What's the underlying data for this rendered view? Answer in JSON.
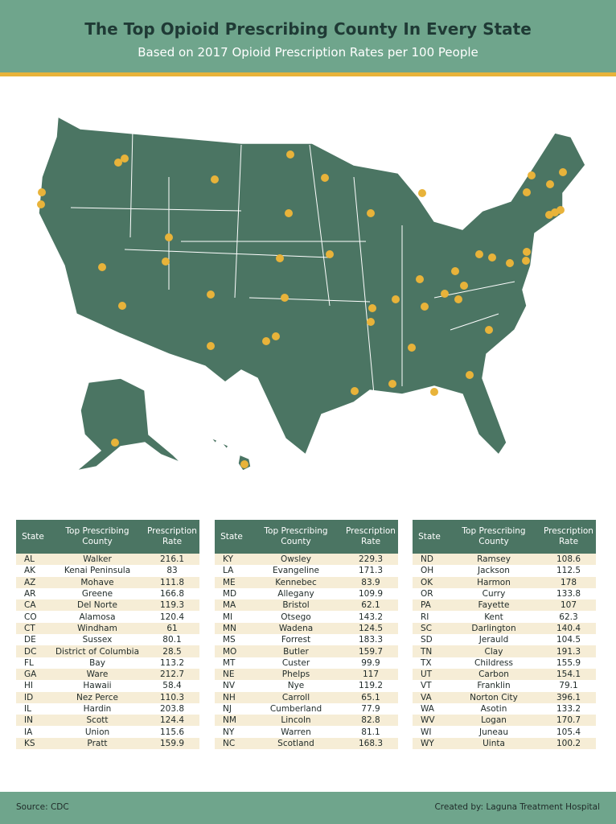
{
  "header": {
    "title": "The Top Opioid Prescribing County In Every State",
    "subtitle": "Based on 2017 Opioid Prescription Rates per 100 People"
  },
  "tables": [
    {
      "columns": [
        "State",
        "Top Prescribing County",
        "Prescription Rate"
      ],
      "rows": [
        [
          "AL",
          "Walker",
          "216.1"
        ],
        [
          "AK",
          "Kenai Peninsula",
          "83"
        ],
        [
          "AZ",
          "Mohave",
          "111.8"
        ],
        [
          "AR",
          "Greene",
          "166.8"
        ],
        [
          "CA",
          "Del Norte",
          "119.3"
        ],
        [
          "CO",
          "Alamosa",
          "120.4"
        ],
        [
          "CT",
          "Windham",
          "61"
        ],
        [
          "DE",
          "Sussex",
          "80.1"
        ],
        [
          "DC",
          "District of Columbia",
          "28.5"
        ],
        [
          "FL",
          "Bay",
          "113.2"
        ],
        [
          "GA",
          "Ware",
          "212.7"
        ],
        [
          "HI",
          "Hawaii",
          "58.4"
        ],
        [
          "ID",
          "Nez Perce",
          "110.3"
        ],
        [
          "IL",
          "Hardin",
          "203.8"
        ],
        [
          "IN",
          "Scott",
          "124.4"
        ],
        [
          "IA",
          "Union",
          "115.6"
        ],
        [
          "KS",
          "Pratt",
          "159.9"
        ]
      ]
    },
    {
      "columns": [
        "State",
        "Top Prescribing County",
        "Prescription Rate"
      ],
      "rows": [
        [
          "KY",
          "Owsley",
          "229.3"
        ],
        [
          "LA",
          "Evangeline",
          "171.3"
        ],
        [
          "ME",
          "Kennebec",
          "83.9"
        ],
        [
          "MD",
          "Allegany",
          "109.9"
        ],
        [
          "MA",
          "Bristol",
          "62.1"
        ],
        [
          "MI",
          "Otsego",
          "143.2"
        ],
        [
          "MN",
          "Wadena",
          "124.5"
        ],
        [
          "MS",
          "Forrest",
          "183.3"
        ],
        [
          "MO",
          "Butler",
          "159.7"
        ],
        [
          "MT",
          "Custer",
          "99.9"
        ],
        [
          "NE",
          "Phelps",
          "117"
        ],
        [
          "NV",
          "Nye",
          "119.2"
        ],
        [
          "NH",
          "Carroll",
          "65.1"
        ],
        [
          "NJ",
          "Cumberland",
          "77.9"
        ],
        [
          "NM",
          "Lincoln",
          "82.8"
        ],
        [
          "NY",
          "Warren",
          "81.1"
        ],
        [
          "NC",
          "Scotland",
          "168.3"
        ]
      ]
    },
    {
      "columns": [
        "State",
        "Top Prescribing County",
        "Prescription Rate"
      ],
      "rows": [
        [
          "ND",
          "Ramsey",
          "108.6"
        ],
        [
          "OH",
          "Jackson",
          "112.5"
        ],
        [
          "OK",
          "Harmon",
          "178"
        ],
        [
          "OR",
          "Curry",
          "133.8"
        ],
        [
          "PA",
          "Fayette",
          "107"
        ],
        [
          "RI",
          "Kent",
          "62.3"
        ],
        [
          "SC",
          "Darlington",
          "140.4"
        ],
        [
          "SD",
          "Jerauld",
          "104.5"
        ],
        [
          "TN",
          "Clay",
          "191.3"
        ],
        [
          "TX",
          "Childress",
          "155.9"
        ],
        [
          "UT",
          "Carbon",
          "154.1"
        ],
        [
          "VT",
          "Franklin",
          "79.1"
        ],
        [
          "VA",
          "Norton City",
          "396.1"
        ],
        [
          "WA",
          "Asotin",
          "133.2"
        ],
        [
          "WV",
          "Logan",
          "170.7"
        ],
        [
          "WI",
          "Juneau",
          "105.4"
        ],
        [
          "WY",
          "Uinta",
          "100.2"
        ]
      ]
    }
  ],
  "footer": {
    "source": "Source: CDC",
    "credit": "Created by: Laguna Treatment Hospital"
  }
}
